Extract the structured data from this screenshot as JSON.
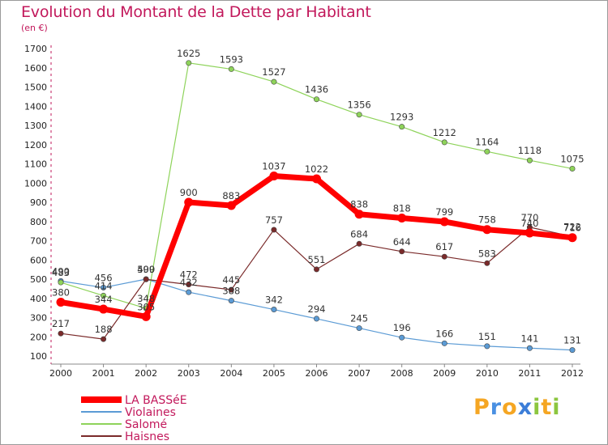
{
  "header": {
    "title": "Evolution du Montant de la Dette par Habitant",
    "subtitle": "(en €)"
  },
  "chart_data": {
    "type": "line",
    "title": "Evolution du Montant de la Dette par Habitant",
    "subtitle": "(en €)",
    "xlabel": "",
    "ylabel": "",
    "x": [
      "2000",
      "2001",
      "2002",
      "2003",
      "2004",
      "2005",
      "2006",
      "2007",
      "2008",
      "2009",
      "2010",
      "2011",
      "2012"
    ],
    "y_ticks": [
      100,
      200,
      300,
      400,
      500,
      600,
      700,
      800,
      900,
      1000,
      1100,
      1200,
      1300,
      1400,
      1500,
      1600,
      1700
    ],
    "ylim": [
      100,
      1700
    ],
    "grid": false,
    "legend_position": "bottom-left",
    "series": [
      {
        "name": "LA BASSéE",
        "color": "#ff0000",
        "values": [
          380,
          344,
          305,
          900,
          883,
          1037,
          1022,
          838,
          818,
          799,
          758,
          740,
          716
        ]
      },
      {
        "name": "Violaines",
        "color": "#5b9bd5",
        "values": [
          490,
          456,
          500,
          432,
          388,
          342,
          294,
          245,
          196,
          166,
          151,
          141,
          131
        ]
      },
      {
        "name": "Salomé",
        "color": "#8ed35a",
        "values": [
          483,
          414,
          348,
          1625,
          1593,
          1527,
          1436,
          1356,
          1293,
          1212,
          1164,
          1118,
          1075
        ]
      },
      {
        "name": "Haisnes",
        "color": "#7a2a2a",
        "values": [
          217,
          188,
          499,
          472,
          445,
          757,
          551,
          684,
          644,
          617,
          583,
          770,
          722
        ]
      }
    ]
  },
  "logo": {
    "letters": [
      {
        "ch": "P",
        "color": "#f5a623"
      },
      {
        "ch": "r",
        "color": "#4a90e2"
      },
      {
        "ch": "o",
        "color": "#f5a623"
      },
      {
        "ch": "x",
        "color": "#3b7dd8"
      },
      {
        "ch": "i",
        "color": "#8cc63f"
      },
      {
        "ch": "t",
        "color": "#f5a623"
      },
      {
        "ch": "i",
        "color": "#8cc63f"
      }
    ]
  }
}
